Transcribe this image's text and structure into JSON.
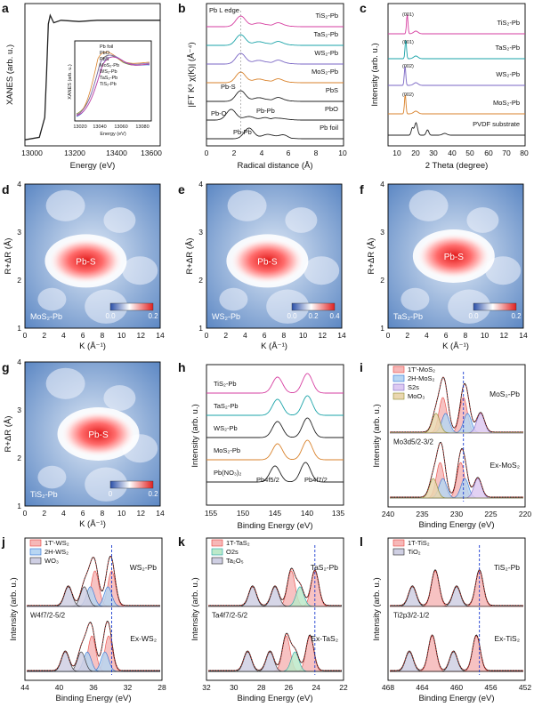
{
  "panels": {
    "a": {
      "label": "a",
      "ylabel": "XANES (arb. u.)",
      "xlabel": "Energy (eV)",
      "xticks": [
        "13000",
        "13200",
        "13400",
        "13600"
      ],
      "inset": {
        "ylabel": "XANES (arb. u.)",
        "xlabel": "Energy (eV)",
        "xticks": [
          "13020",
          "13040",
          "13060",
          "13080"
        ],
        "legend": [
          "Pb foil",
          "PbO",
          "PbS",
          "MoS₂-Pb",
          "WS₂-Pb",
          "TaS₂-Pb",
          "TiS₂-Pb"
        ]
      }
    },
    "b": {
      "label": "b",
      "ylabel": "|FT K³ χ(K)| (Å⁻⁴)",
      "xlabel": "Radical distance (Å)",
      "xticks": [
        "0",
        "2",
        "4",
        "6",
        "8",
        "10"
      ],
      "ann_pbl": "Pb L edge",
      "ann_pbs": "Pb-S",
      "ann_pbo": "Pb-O",
      "ann_pbpb1": "Pb-Pb",
      "ann_pbpb2": "Pb-Pb",
      "series": [
        "TiS₂-Pb",
        "TaS₂-Pb",
        "WS₂-Pb",
        "MoS₂-Pb",
        "PbS",
        "PbO",
        "Pb foil"
      ]
    },
    "c": {
      "label": "c",
      "ylabel": "Intensity (arb. u.)",
      "xlabel": "2 Theta (degree)",
      "xticks": [
        "10",
        "20",
        "30",
        "40",
        "50",
        "60",
        "70",
        "80"
      ],
      "series": [
        "TiS₂-Pb",
        "TaS₂-Pb",
        "WS₂-Pb",
        "MoS₂-Pb",
        "PVDF substrate"
      ],
      "peaks": [
        "(001)",
        "(001)",
        "(002)",
        "(002)"
      ]
    },
    "d": {
      "label": "d",
      "sample": "MoS₂-Pb",
      "bond": "Pb-S",
      "scale": [
        "0.0",
        "0.2"
      ]
    },
    "e": {
      "label": "e",
      "sample": "WS₂-Pb",
      "bond": "Pb-S",
      "scale": [
        "0.0",
        "0.2",
        "0.4"
      ]
    },
    "f": {
      "label": "f",
      "sample": "TaS₂-Pb",
      "bond": "Pb-S",
      "scale": [
        "0.0",
        "0.2"
      ]
    },
    "g": {
      "label": "g",
      "sample": "TiS₂-Pb",
      "bond": "Pb-S",
      "scale": [
        "0",
        "0.2"
      ]
    },
    "wt": {
      "ylabel": "R+ΔR (Å)",
      "xlabel": "K (Å⁻¹)",
      "xticks": [
        "0",
        "2",
        "4",
        "6",
        "8",
        "10",
        "12",
        "14"
      ],
      "yticks": [
        "1",
        "2",
        "3",
        "4"
      ]
    },
    "h": {
      "label": "h",
      "ylabel": "Intensity (arb. u.)",
      "xlabel": "Binding Energy (eV)",
      "xticks": [
        "155",
        "150",
        "145",
        "140",
        "135"
      ],
      "series": [
        "TiS₂-Pb",
        "TaS₂-Pb",
        "WS₂-Pb",
        "MoS₂-Pb",
        "Pb(NO₃)₂"
      ],
      "ann_left": "Pb4f5/2",
      "ann_right": "Pb4f7/2"
    },
    "i": {
      "label": "i",
      "ylabel": "Intensity (arb. u.)",
      "xlabel": "Binding Energy (eV)",
      "xticks": [
        "240",
        "235",
        "230",
        "225",
        "220"
      ],
      "legend": [
        "1T'-MoS₂",
        "2H-MoS₂",
        "S2s",
        "MoO₃"
      ],
      "top": "MoS₂-Pb",
      "bottom": "Ex-MoS₂",
      "orbital": "Mo3d5/2-3/2"
    },
    "j": {
      "label": "j",
      "ylabel": "Intensity (arb. u.)",
      "xlabel": "Binding Energy (eV)",
      "xticks": [
        "44",
        "40",
        "36",
        "32",
        "28"
      ],
      "legend": [
        "1T'-WS₂",
        "2H-WS₂",
        "WO₃"
      ],
      "top": "WS₂-Pb",
      "bottom": "Ex-WS₂",
      "orbital": "W4f7/2-5/2"
    },
    "k": {
      "label": "k",
      "ylabel": "Intensity (arb. u.)",
      "xlabel": "Binding Energy (eV)",
      "xticks": [
        "32",
        "30",
        "28",
        "26",
        "24",
        "22"
      ],
      "legend": [
        "1T-TaS₂",
        "O2s",
        "Ta₂O₅"
      ],
      "top": "TaS₂-Pb",
      "bottom": "Ex-TaS₂",
      "orbital": "Ta4f7/2-5/2"
    },
    "l": {
      "label": "l",
      "ylabel": "Intensity (arb. u.)",
      "xlabel": "Binding Energy (eV)",
      "xticks": [
        "468",
        "464",
        "460",
        "456",
        "452"
      ],
      "legend": [
        "1T-TiS₂",
        "TiO₂"
      ],
      "top": "TiS₂-Pb",
      "bottom": "Ex-TiS₂",
      "orbital": "Ti2p3/2-1/2"
    }
  },
  "colors": {
    "black": "#222222",
    "magenta": "#d63ea0",
    "teal": "#1aa3a8",
    "purple": "#7a66c4",
    "orange": "#d9822b",
    "olive": "#8a8a2a",
    "red": "#e8403a",
    "blue": "#2a6fd6",
    "wt_low": "#3c6bb0",
    "wt_high": "#e02a2a"
  },
  "chart_data": [
    {
      "type": "line",
      "panel": "a",
      "title": "",
      "xlabel": "Energy (eV)",
      "ylabel": "XANES (arb. u.)",
      "xlim": [
        12900,
        13650
      ],
      "x": [
        12900,
        12980,
        13010,
        13020,
        13030,
        13040,
        13060,
        13100,
        13200,
        13300,
        13400,
        13500,
        13600,
        13650
      ],
      "series": [
        {
          "values": [
            0.02,
            0.04,
            0.2,
            0.55,
            0.95,
            1.02,
            0.96,
            0.98,
            0.97,
            0.98,
            0.98,
            0.98,
            0.98,
            0.98
          ]
        }
      ]
    },
    {
      "type": "line",
      "panel": "b",
      "xlabel": "Radical distance (Å)",
      "ylabel": "|FT K³ χ(K)| (Å⁻⁴)",
      "xlim": [
        0,
        10
      ],
      "series": [
        {
          "name": "TiS₂-Pb",
          "peak_r": 2.5
        },
        {
          "name": "TaS₂-Pb",
          "peak_r": 2.5
        },
        {
          "name": "WS₂-Pb",
          "peak_r": 2.5
        },
        {
          "name": "MoS₂-Pb",
          "peak_r": 2.5
        },
        {
          "name": "PbS",
          "peak_r": 2.5
        },
        {
          "name": "PbO",
          "peak_r": 1.8
        },
        {
          "name": "Pb foil",
          "peak_r": 3.1
        }
      ]
    },
    {
      "type": "line",
      "panel": "c",
      "xlabel": "2 Theta (degree)",
      "ylabel": "Intensity (arb. u.)",
      "xlim": [
        5,
        80
      ],
      "series": [
        {
          "name": "TiS₂-Pb",
          "peak_2theta": 15.5
        },
        {
          "name": "TaS₂-Pb",
          "peak_2theta": 14.7
        },
        {
          "name": "WS₂-Pb",
          "peak_2theta": 14.3
        },
        {
          "name": "MoS₂-Pb",
          "peak_2theta": 14.4
        },
        {
          "name": "PVDF substrate",
          "peak_2theta": 20.3
        }
      ]
    },
    {
      "type": "line",
      "panel": "h",
      "xlabel": "Binding Energy (eV)",
      "ylabel": "Intensity (arb. u.)",
      "xlim": [
        155,
        133
      ],
      "series": [
        {
          "name": "TiS₂-Pb",
          "peaks": [
            143.6,
            138.8
          ]
        },
        {
          "name": "TaS₂-Pb",
          "peaks": [
            143.6,
            138.8
          ]
        },
        {
          "name": "WS₂-Pb",
          "peaks": [
            143.6,
            138.8
          ]
        },
        {
          "name": "MoS₂-Pb",
          "peaks": [
            143.6,
            138.8
          ]
        },
        {
          "name": "Pb(NO₃)₂",
          "peaks": [
            144.0,
            139.1
          ]
        }
      ]
    },
    {
      "type": "line",
      "panel": "i",
      "xlabel": "Binding Energy (eV)",
      "ylabel": "Intensity (arb. u.)",
      "xlim": [
        240,
        220
      ],
      "series": [
        {
          "name": "MoS₂-Pb"
        },
        {
          "name": "Ex-MoS₂"
        }
      ]
    },
    {
      "type": "line",
      "panel": "j",
      "xlabel": "Binding Energy (eV)",
      "ylabel": "Intensity (arb. u.)",
      "xlim": [
        44,
        26
      ],
      "series": [
        {
          "name": "WS₂-Pb"
        },
        {
          "name": "Ex-WS₂"
        }
      ]
    },
    {
      "type": "line",
      "panel": "k",
      "xlabel": "Binding Energy (eV)",
      "ylabel": "Intensity (arb. u.)",
      "xlim": [
        32,
        21
      ],
      "series": [
        {
          "name": "TaS₂-Pb"
        },
        {
          "name": "Ex-TaS₂"
        }
      ]
    },
    {
      "type": "line",
      "panel": "l",
      "xlabel": "Binding Energy (eV)",
      "ylabel": "Intensity (arb. u.)",
      "xlim": [
        468,
        450
      ],
      "series": [
        {
          "name": "TiS₂-Pb"
        },
        {
          "name": "Ex-TiS₂"
        }
      ]
    },
    {
      "type": "heatmap",
      "panel": "d-g",
      "xlabel": "K (Å⁻¹)",
      "ylabel": "R+ΔR (Å)",
      "xlim": [
        0,
        14
      ],
      "ylim": [
        1,
        4
      ],
      "maxima": [
        {
          "name": "MoS₂-Pb",
          "k": 6.3,
          "r": 2.4
        },
        {
          "name": "WS₂-Pb",
          "k": 6.3,
          "r": 2.4
        },
        {
          "name": "TaS₂-Pb",
          "k": 6.8,
          "r": 2.5
        },
        {
          "name": "TiS₂-Pb",
          "k": 7.6,
          "r": 2.5
        }
      ]
    }
  ]
}
